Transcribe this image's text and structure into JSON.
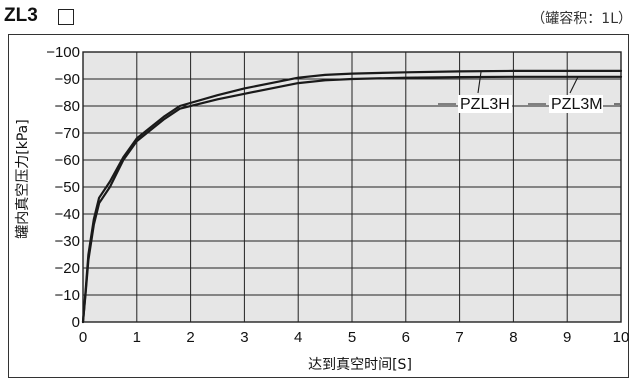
{
  "header": {
    "title": "ZL3",
    "note": "（罐容积：1L）"
  },
  "chart_data": {
    "type": "line",
    "title": "",
    "xlabel": "达到真空时间[S]",
    "ylabel": "罐内真空压力[kPa]",
    "xlim": [
      0,
      10
    ],
    "ylim": [
      0,
      -100
    ],
    "x_ticks": [
      "0",
      "1",
      "2",
      "3",
      "4",
      "5",
      "6",
      "7",
      "8",
      "9",
      "10"
    ],
    "y_ticks": [
      "0",
      "−10",
      "−20",
      "−30",
      "−40",
      "−50",
      "−60",
      "−70",
      "−80",
      "−90",
      "−100"
    ],
    "grid": true,
    "series": [
      {
        "name": "PZL3H",
        "x": [
          0,
          0.05,
          0.1,
          0.2,
          0.3,
          0.5,
          0.75,
          1.0,
          1.5,
          1.8,
          2.5,
          3.0,
          3.5,
          4.0,
          4.5,
          5.0,
          6.0,
          7.0,
          8.0,
          9.0,
          10.0
        ],
        "y": [
          0,
          -12,
          -25,
          -38,
          -46,
          -52,
          -61,
          -68,
          -76,
          -80,
          -84,
          -86.5,
          -88.5,
          -90.5,
          -91.5,
          -92,
          -92.5,
          -92.8,
          -93,
          -93,
          -93
        ]
      },
      {
        "name": "PZL3M",
        "x": [
          0,
          0.05,
          0.1,
          0.2,
          0.3,
          0.5,
          0.75,
          1.0,
          1.5,
          1.8,
          2.5,
          3.0,
          3.5,
          4.0,
          4.5,
          5.0,
          6.0,
          7.0,
          8.0,
          9.0,
          10.0
        ],
        "y": [
          0,
          -11,
          -23,
          -36,
          -44,
          -50,
          -60,
          -67,
          -75,
          -79,
          -82.5,
          -84.5,
          -86.5,
          -88.5,
          -89.5,
          -90,
          -90.5,
          -90.7,
          -90.8,
          -90.8,
          -90.8
        ]
      }
    ]
  }
}
